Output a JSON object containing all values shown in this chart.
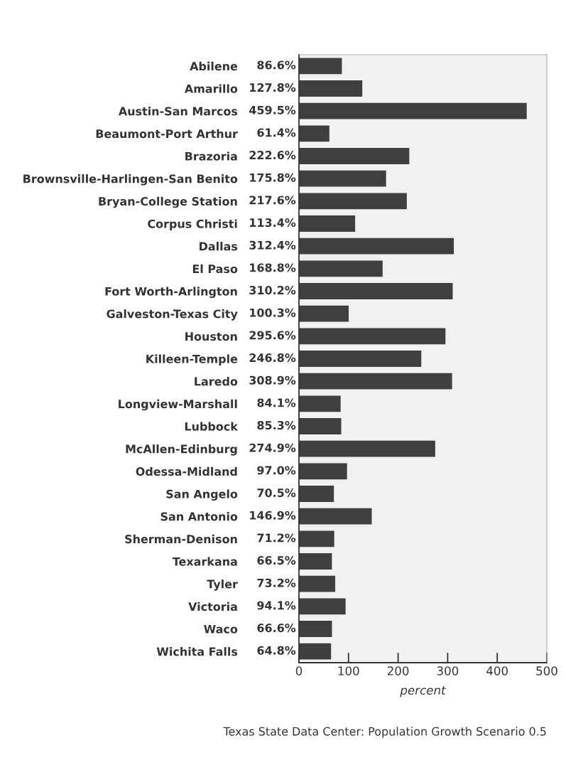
{
  "chart_data": {
    "type": "bar",
    "orientation": "horizontal",
    "categories": [
      "Abilene",
      "Amarillo",
      "Austin-San Marcos",
      "Beaumont-Port Arthur",
      "Brazoria",
      "Brownsville-Harlingen-San Benito",
      "Bryan-College Station",
      "Corpus Christi",
      "Dallas",
      "El Paso",
      "Fort Worth-Arlington",
      "Galveston-Texas City",
      "Houston",
      "Killeen-Temple",
      "Laredo",
      "Longview-Marshall",
      "Lubbock",
      "McAllen-Edinburg",
      "Odessa-Midland",
      "San Angelo",
      "San Antonio",
      "Sherman-Denison",
      "Texarkana",
      "Tyler",
      "Victoria",
      "Waco",
      "Wichita Falls"
    ],
    "values": [
      86.6,
      127.8,
      459.5,
      61.4,
      222.6,
      175.8,
      217.6,
      113.4,
      312.4,
      168.8,
      310.2,
      100.3,
      295.6,
      246.8,
      308.9,
      84.1,
      85.3,
      274.9,
      97.0,
      70.5,
      146.9,
      71.2,
      66.5,
      73.2,
      94.1,
      66.6,
      64.8
    ],
    "value_labels": [
      "86.6%",
      "127.8%",
      "459.5%",
      "61.4%",
      "222.6%",
      "175.8%",
      "217.6%",
      "113.4%",
      "312.4%",
      "168.8%",
      "310.2%",
      "100.3%",
      "295.6%",
      "246.8%",
      "308.9%",
      "84.1%",
      "85.3%",
      "274.9%",
      "97.0%",
      "70.5%",
      "146.9%",
      "71.2%",
      "66.5%",
      "73.2%",
      "94.1%",
      "66.6%",
      "64.8%"
    ],
    "color": "#3f3f3f",
    "xlim": [
      0,
      500
    ],
    "xticks": [
      0,
      100,
      200,
      300,
      400,
      500
    ],
    "xlabel": "percent",
    "annotations": [
      "Texas State Data Center: Population Growth Scenario 0.5"
    ],
    "grid": false,
    "legend": false
  }
}
